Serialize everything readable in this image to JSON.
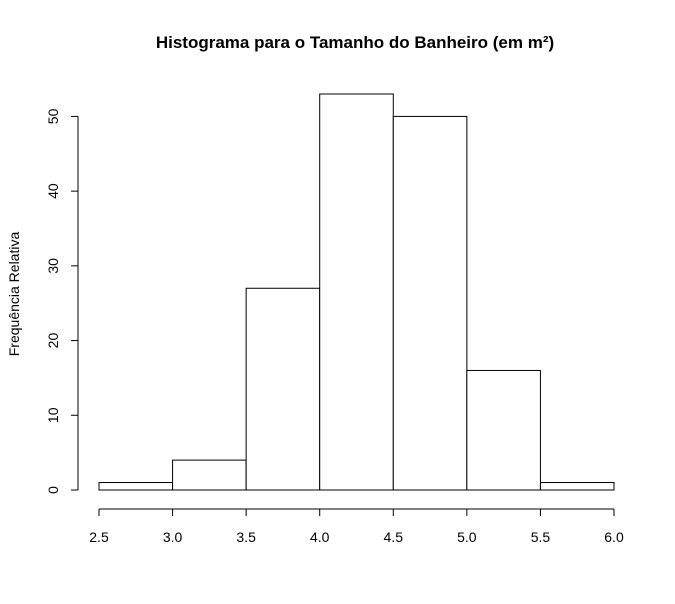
{
  "chart_data": {
    "type": "bar",
    "title": "Histograma para o Tamanho do Banheiro (em m²)",
    "xlabel": "",
    "ylabel": "Frequência Relativa",
    "bins": [
      {
        "from": 2.5,
        "to": 3.0,
        "value": 1
      },
      {
        "from": 3.0,
        "to": 3.5,
        "value": 4
      },
      {
        "from": 3.5,
        "to": 4.0,
        "value": 27
      },
      {
        "from": 4.0,
        "to": 4.5,
        "value": 53
      },
      {
        "from": 4.5,
        "to": 5.0,
        "value": 50
      },
      {
        "from": 5.0,
        "to": 5.5,
        "value": 16
      },
      {
        "from": 5.5,
        "to": 6.0,
        "value": 1
      }
    ],
    "xlim": [
      2.5,
      6.0
    ],
    "ylim": [
      0,
      53
    ],
    "x_ticks": [
      "2.5",
      "3.0",
      "3.5",
      "4.0",
      "4.5",
      "5.0",
      "5.5",
      "6.0"
    ],
    "y_ticks": [
      "0",
      "10",
      "20",
      "30",
      "40",
      "50"
    ],
    "grid": false,
    "bar_fill": "#ffffff",
    "bar_stroke": "#000000"
  }
}
